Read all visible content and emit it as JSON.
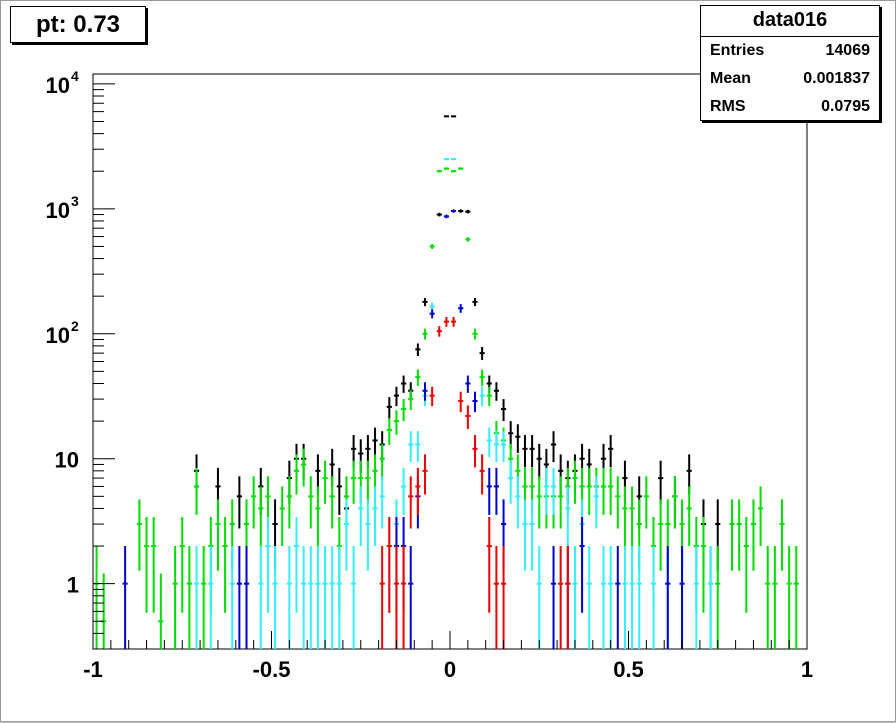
{
  "title_box": {
    "text": "pt: 0.73"
  },
  "stats": {
    "name": "data016",
    "rows": [
      {
        "label": "Entries",
        "value": "14069"
      },
      {
        "label": "Mean",
        "value": "0.001837"
      },
      {
        "label": "RMS",
        "value": "0.0795"
      }
    ]
  },
  "chart_data": {
    "type": "scatter",
    "title": "",
    "xlabel": "",
    "ylabel": "",
    "xlim": [
      -1,
      1
    ],
    "ylim": [
      0.3,
      12000
    ],
    "y_scale": "log",
    "grid": false,
    "legend": "none",
    "x_ticks": [
      {
        "value": -1,
        "label": "-1"
      },
      {
        "value": -0.5,
        "label": "-0.5"
      },
      {
        "value": 0,
        "label": "0"
      },
      {
        "value": 0.5,
        "label": "0.5"
      },
      {
        "value": 1,
        "label": "1"
      }
    ],
    "y_ticks": [
      {
        "value": 1,
        "base": "1",
        "exp": ""
      },
      {
        "value": 10,
        "base": "10",
        "exp": ""
      },
      {
        "value": 100,
        "base": "10",
        "exp": "2"
      },
      {
        "value": 1000,
        "base": "10",
        "exp": "3"
      },
      {
        "value": 10000,
        "base": "10",
        "exp": "4"
      }
    ],
    "bin_width": 0.02,
    "series": [
      {
        "color": "#000000",
        "points": [
          [
            -0.71,
            8
          ],
          [
            -0.65,
            6
          ],
          [
            -0.59,
            5
          ],
          [
            -0.53,
            6
          ],
          [
            -0.49,
            3
          ],
          [
            -0.45,
            7
          ],
          [
            -0.43,
            10
          ],
          [
            -0.41,
            10
          ],
          [
            -0.37,
            8
          ],
          [
            -0.33,
            9
          ],
          [
            -0.31,
            6
          ],
          [
            -0.29,
            4
          ],
          [
            -0.27,
            12
          ],
          [
            -0.25,
            11
          ],
          [
            -0.23,
            12
          ],
          [
            -0.21,
            14
          ],
          [
            -0.19,
            13
          ],
          [
            -0.17,
            26
          ],
          [
            -0.15,
            32
          ],
          [
            -0.13,
            40
          ],
          [
            -0.11,
            35
          ],
          [
            -0.09,
            75
          ],
          [
            -0.07,
            180
          ],
          [
            -0.03,
            900
          ],
          [
            -0.01,
            5500
          ],
          [
            0.01,
            5500
          ],
          [
            0.03,
            960
          ],
          [
            0.05,
            950
          ],
          [
            0.07,
            180
          ],
          [
            0.09,
            70
          ],
          [
            0.11,
            40
          ],
          [
            0.13,
            35
          ],
          [
            0.15,
            25
          ],
          [
            0.17,
            16
          ],
          [
            0.19,
            15
          ],
          [
            0.21,
            12
          ],
          [
            0.23,
            12
          ],
          [
            0.25,
            10
          ],
          [
            0.27,
            9
          ],
          [
            0.29,
            13
          ],
          [
            0.31,
            8
          ],
          [
            0.33,
            7
          ],
          [
            0.35,
            8
          ],
          [
            0.37,
            10
          ],
          [
            0.39,
            9
          ],
          [
            0.43,
            10
          ],
          [
            0.45,
            12
          ],
          [
            0.49,
            7
          ],
          [
            0.53,
            5
          ],
          [
            0.59,
            7
          ],
          [
            0.63,
            5
          ],
          [
            0.67,
            8
          ],
          [
            0.71,
            3
          ],
          [
            0.75,
            3
          ]
        ]
      },
      {
        "color": "#00dd00",
        "points": [
          [
            -0.99,
            1
          ],
          [
            -0.97,
            0.5
          ],
          [
            -0.87,
            3
          ],
          [
            -0.85,
            2
          ],
          [
            -0.83,
            2
          ],
          [
            -0.81,
            0.5
          ],
          [
            -0.77,
            1
          ],
          [
            -0.75,
            2
          ],
          [
            -0.73,
            1
          ],
          [
            -0.71,
            6
          ],
          [
            -0.69,
            1
          ],
          [
            -0.67,
            2
          ],
          [
            -0.65,
            3
          ],
          [
            -0.63,
            2
          ],
          [
            -0.61,
            3
          ],
          [
            -0.57,
            3
          ],
          [
            -0.55,
            5
          ],
          [
            -0.53,
            4
          ],
          [
            -0.51,
            5
          ],
          [
            -0.47,
            4
          ],
          [
            -0.45,
            5
          ],
          [
            -0.43,
            8
          ],
          [
            -0.41,
            9
          ],
          [
            -0.39,
            5
          ],
          [
            -0.37,
            4
          ],
          [
            -0.35,
            7
          ],
          [
            -0.33,
            5
          ],
          [
            -0.31,
            2
          ],
          [
            -0.29,
            5
          ],
          [
            -0.27,
            7
          ],
          [
            -0.25,
            7
          ],
          [
            -0.23,
            7
          ],
          [
            -0.21,
            8
          ],
          [
            -0.19,
            10
          ],
          [
            -0.17,
            17
          ],
          [
            -0.15,
            20
          ],
          [
            -0.13,
            25
          ],
          [
            -0.11,
            30
          ],
          [
            -0.09,
            45
          ],
          [
            -0.07,
            100
          ],
          [
            -0.05,
            500
          ],
          [
            -0.03,
            2000
          ],
          [
            -0.01,
            2100
          ],
          [
            0.01,
            2000
          ],
          [
            0.03,
            2100
          ],
          [
            0.05,
            570
          ],
          [
            0.07,
            100
          ],
          [
            0.09,
            45
          ],
          [
            0.11,
            32
          ],
          [
            0.13,
            16
          ],
          [
            0.15,
            14
          ],
          [
            0.17,
            10
          ],
          [
            0.19,
            8
          ],
          [
            0.21,
            6
          ],
          [
            0.23,
            6
          ],
          [
            0.25,
            5
          ],
          [
            0.27,
            5
          ],
          [
            0.29,
            5
          ],
          [
            0.31,
            5
          ],
          [
            0.33,
            6
          ],
          [
            0.35,
            7
          ],
          [
            0.37,
            6
          ],
          [
            0.39,
            6
          ],
          [
            0.41,
            6
          ],
          [
            0.43,
            6
          ],
          [
            0.45,
            6
          ],
          [
            0.47,
            5
          ],
          [
            0.49,
            4
          ],
          [
            0.51,
            4
          ],
          [
            0.53,
            3
          ],
          [
            0.55,
            5
          ],
          [
            0.57,
            2
          ],
          [
            0.59,
            3
          ],
          [
            0.61,
            3
          ],
          [
            0.63,
            5
          ],
          [
            0.65,
            3
          ],
          [
            0.67,
            4
          ],
          [
            0.69,
            2
          ],
          [
            0.71,
            2
          ],
          [
            0.73,
            1
          ],
          [
            0.75,
            1
          ],
          [
            0.79,
            3
          ],
          [
            0.81,
            3
          ],
          [
            0.83,
            2
          ],
          [
            0.85,
            3
          ],
          [
            0.87,
            4
          ],
          [
            0.89,
            1
          ],
          [
            0.91,
            1
          ],
          [
            0.93,
            3
          ],
          [
            0.95,
            1
          ],
          [
            0.97,
            1
          ]
        ]
      },
      {
        "color": "#33eeff",
        "points": [
          [
            -0.71,
            1
          ],
          [
            -0.67,
            1
          ],
          [
            -0.61,
            1
          ],
          [
            -0.57,
            1
          ],
          [
            -0.53,
            1
          ],
          [
            -0.51,
            2
          ],
          [
            -0.49,
            1
          ],
          [
            -0.45,
            1
          ],
          [
            -0.43,
            2
          ],
          [
            -0.41,
            1
          ],
          [
            -0.39,
            1
          ],
          [
            -0.37,
            1
          ],
          [
            -0.35,
            1
          ],
          [
            -0.33,
            1
          ],
          [
            -0.31,
            1
          ],
          [
            -0.29,
            3
          ],
          [
            -0.27,
            1
          ],
          [
            -0.25,
            4
          ],
          [
            -0.23,
            3
          ],
          [
            -0.21,
            4
          ],
          [
            -0.19,
            5
          ],
          [
            -0.17,
            2
          ],
          [
            -0.15,
            3
          ],
          [
            -0.13,
            6
          ],
          [
            -0.11,
            13
          ],
          [
            -0.09,
            13
          ],
          [
            -0.07,
            32
          ],
          [
            -0.05,
            165
          ],
          [
            -0.01,
            2500
          ],
          [
            0.01,
            2500
          ],
          [
            0.03,
            160
          ],
          [
            0.09,
            32
          ],
          [
            0.11,
            14
          ],
          [
            0.13,
            13
          ],
          [
            0.15,
            13
          ],
          [
            0.17,
            7
          ],
          [
            0.19,
            5
          ],
          [
            0.21,
            3
          ],
          [
            0.23,
            3
          ],
          [
            0.25,
            1
          ],
          [
            0.27,
            6
          ],
          [
            0.29,
            6
          ],
          [
            0.31,
            1
          ],
          [
            0.33,
            4
          ],
          [
            0.35,
            1
          ],
          [
            0.37,
            3
          ],
          [
            0.39,
            1
          ],
          [
            0.41,
            5
          ],
          [
            0.43,
            1
          ],
          [
            0.45,
            1
          ],
          [
            0.49,
            1
          ],
          [
            0.51,
            1
          ],
          [
            0.53,
            1
          ],
          [
            0.57,
            1
          ],
          [
            0.61,
            1
          ],
          [
            0.65,
            1
          ],
          [
            0.69,
            1
          ],
          [
            0.73,
            1
          ]
        ]
      },
      {
        "color": "#0000cc",
        "points": [
          [
            -0.91,
            1
          ],
          [
            -0.59,
            1
          ],
          [
            -0.57,
            1
          ],
          [
            -0.15,
            2
          ],
          [
            -0.13,
            2
          ],
          [
            -0.11,
            1
          ],
          [
            -0.09,
            5
          ],
          [
            -0.07,
            35
          ],
          [
            -0.05,
            145
          ],
          [
            -0.01,
            870
          ],
          [
            0.01,
            960
          ],
          [
            0.03,
            160
          ],
          [
            0.05,
            40
          ],
          [
            0.07,
            29
          ],
          [
            0.11,
            6
          ],
          [
            0.13,
            6
          ],
          [
            0.15,
            3
          ],
          [
            0.29,
            1
          ],
          [
            0.33,
            1
          ],
          [
            0.37,
            2
          ],
          [
            0.47,
            1
          ],
          [
            0.61,
            1
          ],
          [
            0.65,
            1
          ]
        ]
      },
      {
        "color": "#ee0000",
        "points": [
          [
            -0.19,
            1
          ],
          [
            -0.17,
            2
          ],
          [
            -0.15,
            1
          ],
          [
            -0.13,
            1
          ],
          [
            -0.11,
            5
          ],
          [
            -0.09,
            6
          ],
          [
            -0.07,
            8
          ],
          [
            -0.05,
            32
          ],
          [
            -0.03,
            105
          ],
          [
            -0.01,
            125
          ],
          [
            0.01,
            125
          ],
          [
            0.03,
            29
          ],
          [
            0.05,
            22
          ],
          [
            0.07,
            12
          ],
          [
            0.09,
            8
          ],
          [
            0.11,
            2
          ],
          [
            0.13,
            1
          ],
          [
            0.15,
            1
          ],
          [
            0.31,
            1
          ],
          [
            0.33,
            1
          ]
        ]
      }
    ]
  }
}
